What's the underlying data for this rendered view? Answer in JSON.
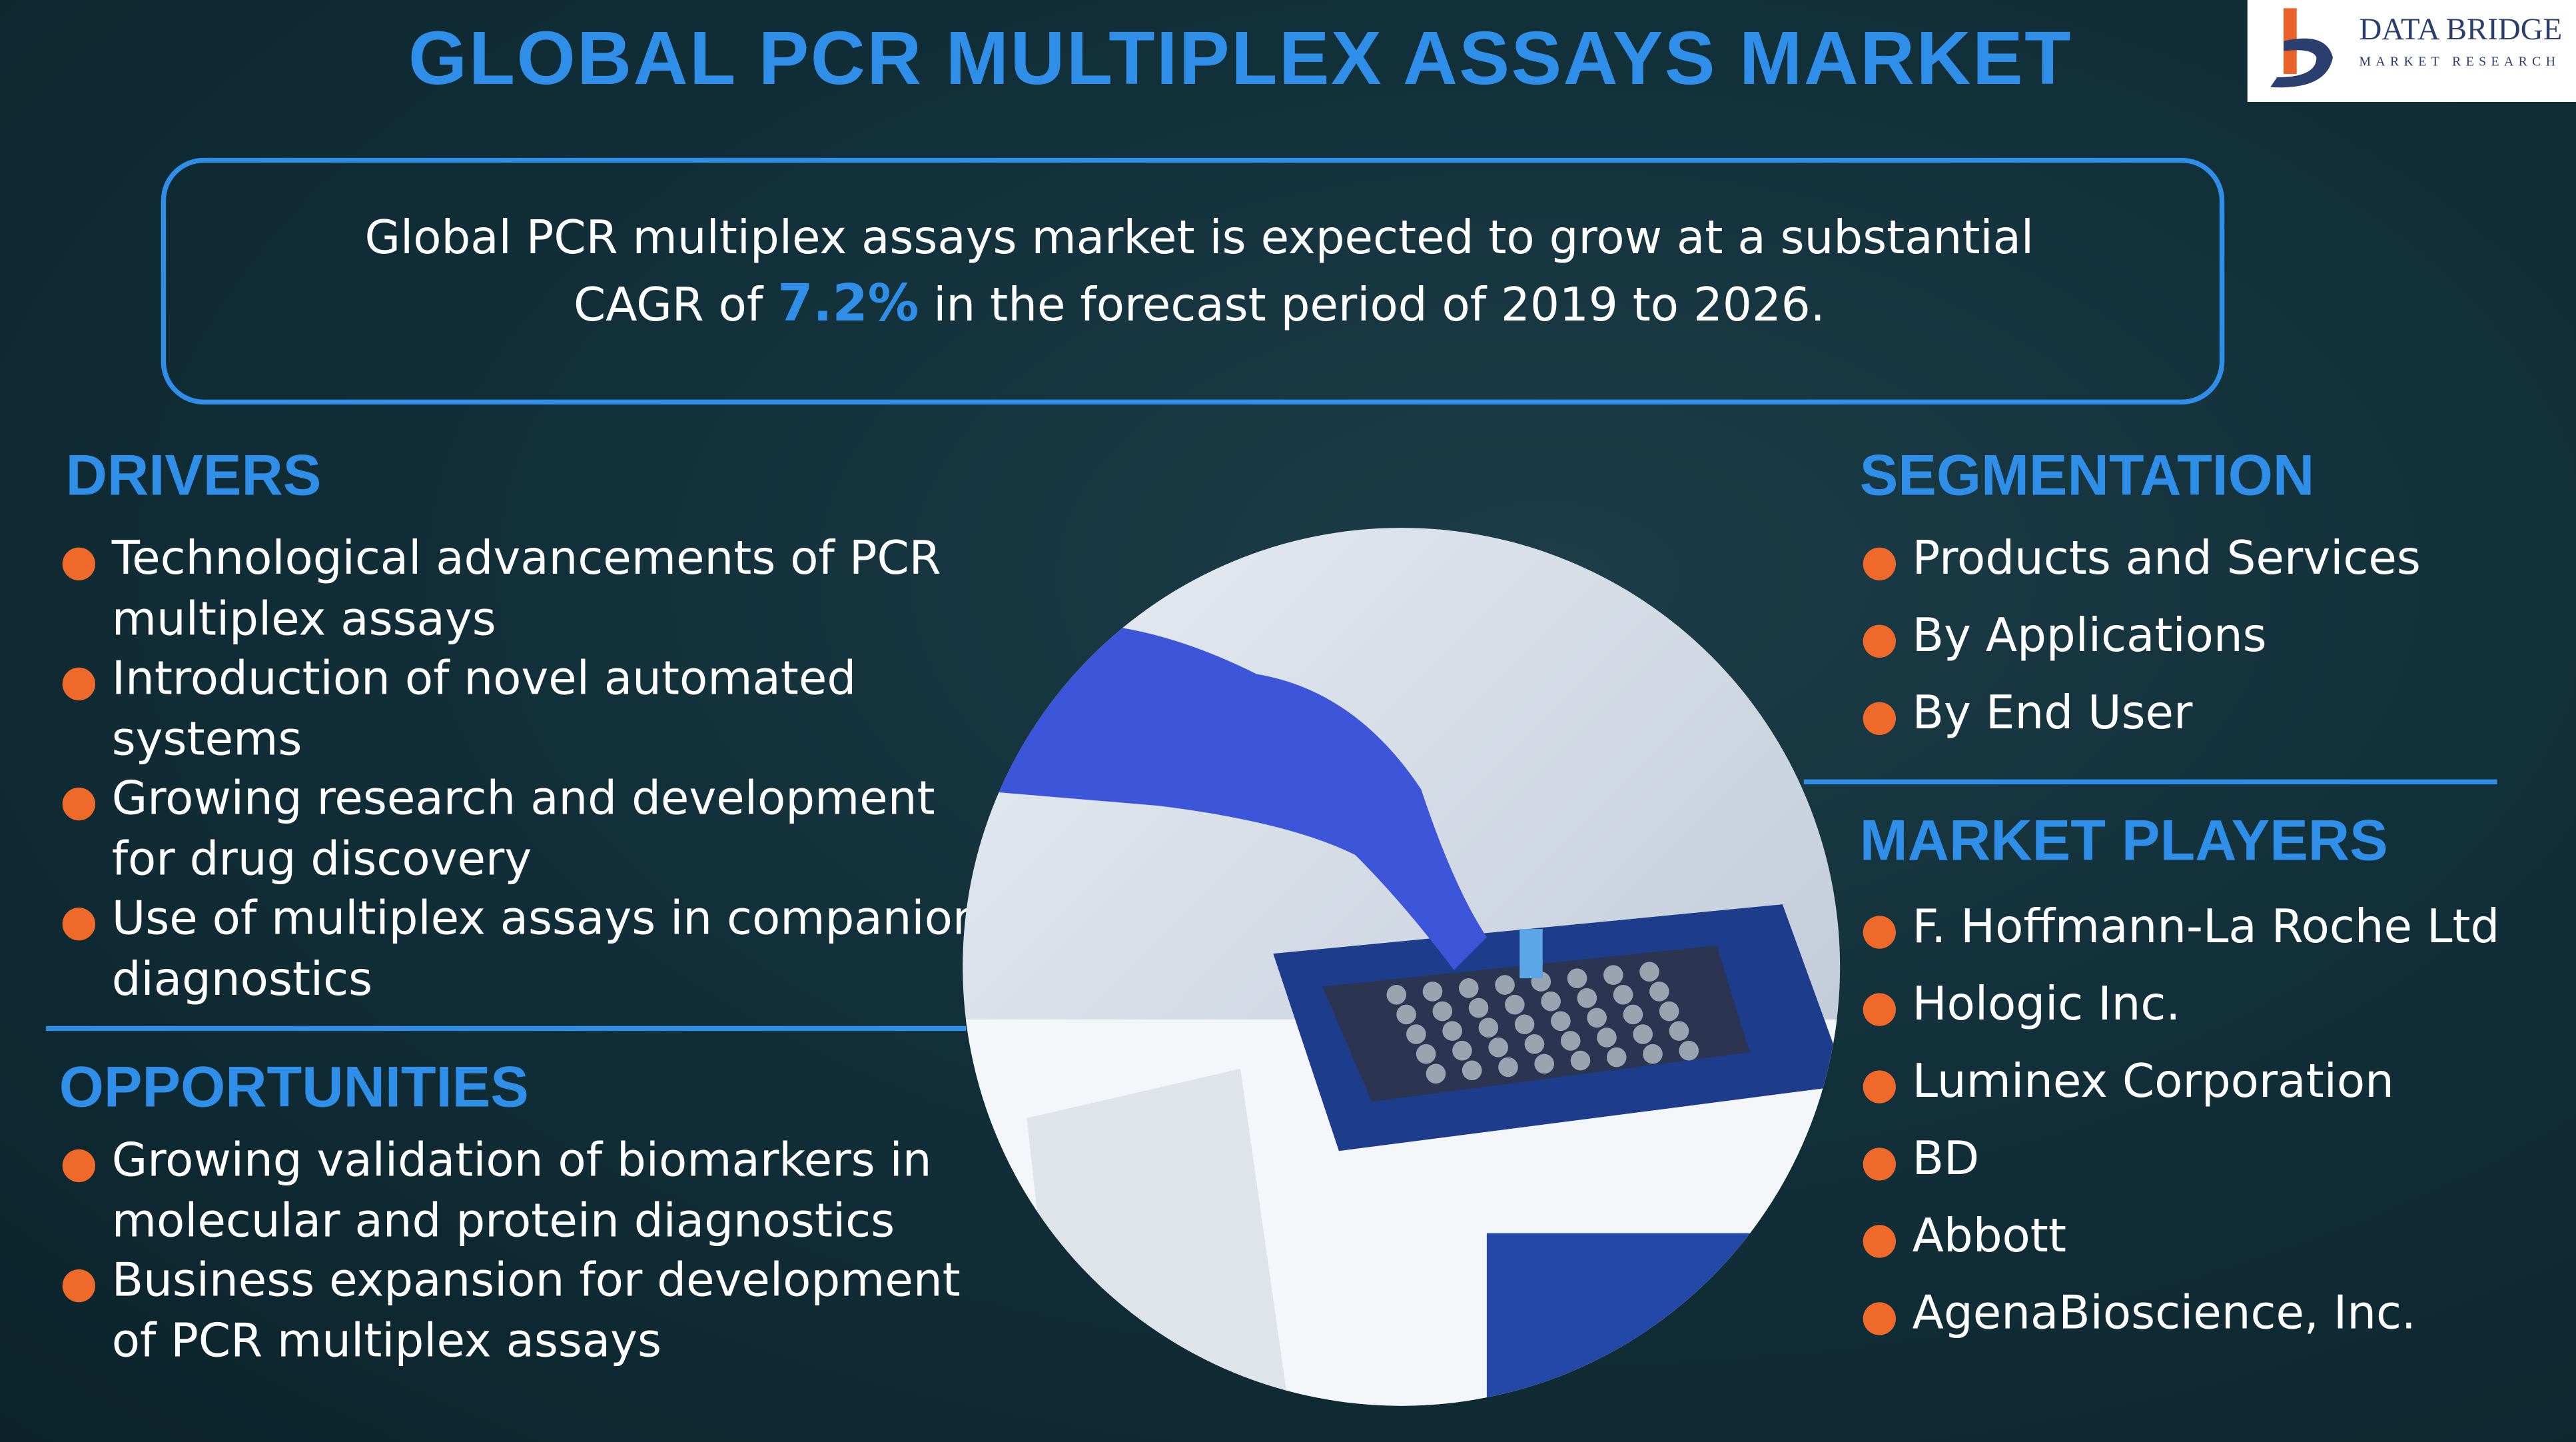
{
  "header": {
    "title": "GLOBAL PCR MULTIPLEX ASSAYS MARKET"
  },
  "logo": {
    "name": "DATA BRIDGE",
    "tagline": "MARKET RESEARCH"
  },
  "summary": {
    "text_before": "Global PCR multiplex assays market is expected to grow at a substantial CAGR of",
    "highlight": "7.2%",
    "text_after": "in the forecast period of 2019 to 2026."
  },
  "drivers": {
    "heading": "DRIVERS",
    "items": [
      "Technological advancements of PCR multiplex assays",
      "Introduction of novel automated systems",
      "Growing research and development for drug discovery",
      "Use of multiplex assays in companion diagnostics"
    ]
  },
  "opportunities": {
    "heading": "OPPORTUNITIES",
    "items": [
      "Growing validation of biomarkers in molecular and protein diagnostics",
      "Business expansion for development of PCR multiplex assays"
    ]
  },
  "segmentation": {
    "heading": "SEGMENTATION",
    "items": [
      "Products and Services",
      "By Applications",
      "By End User"
    ]
  },
  "market_players": {
    "heading": "MARKET PLAYERS",
    "items": [
      "F. Hoffmann-La Roche Ltd",
      "Hologic Inc.",
      "Luminex Corporation",
      "BD",
      "Abbott",
      "AgenaBioscience, Inc."
    ]
  }
}
